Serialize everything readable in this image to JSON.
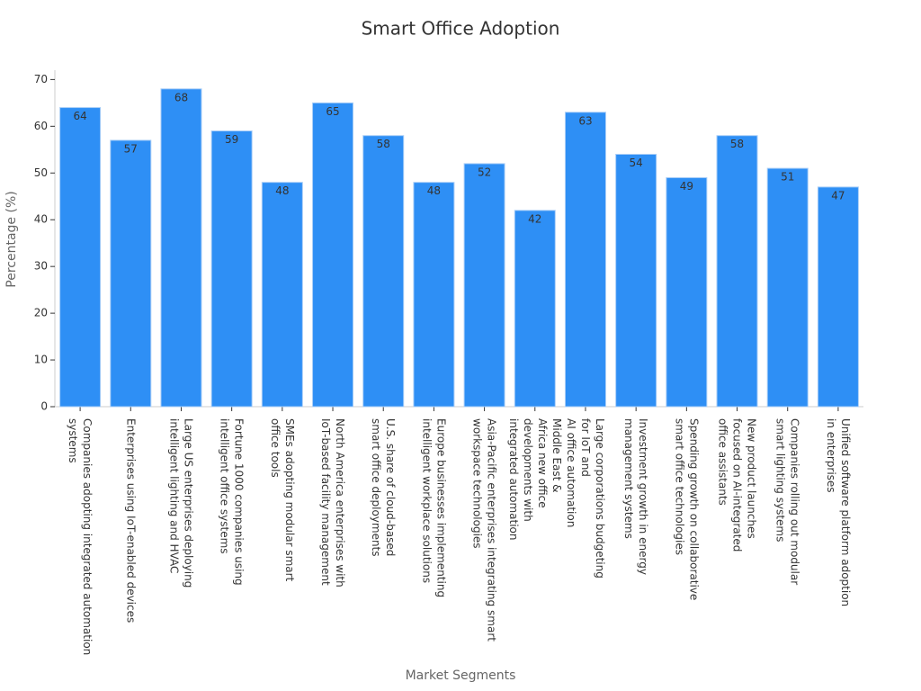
{
  "chart_data": {
    "type": "bar",
    "title": "Smart Office Adoption",
    "x_label": "Market Segments",
    "y_label": "Percentage (%)",
    "categories": [
      "Companies adopting integrated automation\nsystems",
      "Enterprises using IoT-enabled devices",
      "Large US enterprises deploying\nintelligent lighting and HVAC",
      "Fortune 1000 companies using\nintelligent office systems",
      "SMEs adopting modular smart\noffice tools",
      "North America enterprises with\nIoT-based facility management",
      "U.S. share of cloud-based\nsmart office deployments",
      "Europe businesses implementing\nintelligent workplace solutions",
      "Asia-Pacific enterprises integrating smart\nworkspace technologies",
      "Middle East &\nAfrica new office\ndevelopments with\nintegrated automation",
      "Large corporations budgeting\nfor IoT and\nAI office automation",
      "Investment growth in energy\nmanagement systems",
      "Spending growth on collaborative\nsmart office technologies",
      "New product launches\nfocused on AI-integrated\noffice assistants",
      "Companies rolling out modular\nsmart lighting systems",
      "Unified software platform adoption\nin enterprises"
    ],
    "values": [
      64,
      57,
      68,
      59,
      48,
      65,
      58,
      48,
      52,
      42,
      63,
      54,
      49,
      58,
      51,
      47
    ],
    "color": "#2e8ff5",
    "ylim": [
      0,
      72
    ],
    "yticks": [
      0,
      10,
      20,
      30,
      40,
      50,
      60,
      70
    ],
    "grid": false
  }
}
